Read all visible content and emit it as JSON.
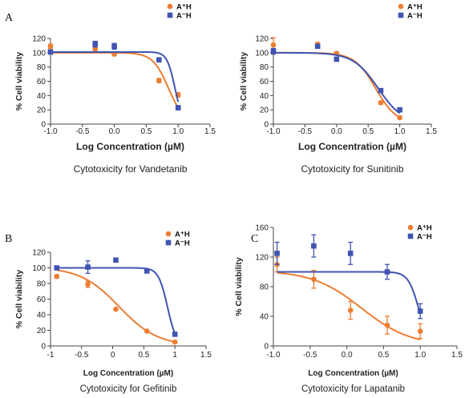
{
  "chart_data": [
    {
      "type": "scatter",
      "panel_letter": "A",
      "caption": "Cytotoxicity for Vandetanib",
      "xlabel": "Log Concentration (µM)",
      "ylabel": "% Cell viability",
      "xlim": [
        -1.0,
        1.5
      ],
      "ylim": [
        0,
        120
      ],
      "x_ticks": [
        "-1.0",
        "-0.5",
        "0.0",
        "0.5",
        "1.0",
        "1.5"
      ],
      "y_ticks": [
        "0",
        "20",
        "40",
        "60",
        "80",
        "100",
        "120"
      ],
      "legend_position": "top-right",
      "series": [
        {
          "name": "A⁺H",
          "color": "#ed7d31",
          "marker": "circle",
          "x": [
            -1.0,
            -0.3,
            0.0,
            0.7,
            1.0
          ],
          "y": [
            109,
            105,
            98,
            61,
            41
          ],
          "err": [
            3,
            2,
            2,
            3,
            3
          ],
          "curve": {
            "top": 100,
            "ic50": 0.85,
            "hill": 3.5
          }
        },
        {
          "name": "A⁻H",
          "color": "#4054b2",
          "marker": "square",
          "x": [
            -1.0,
            -0.3,
            0.0,
            0.7,
            1.0
          ],
          "y": [
            101,
            112,
            109,
            90,
            23
          ],
          "err": [
            3,
            4,
            4,
            2,
            3
          ],
          "curve": {
            "top": 101,
            "ic50": 0.95,
            "hill": 7.0
          }
        }
      ]
    },
    {
      "type": "scatter",
      "panel_letter": "",
      "caption": "Cytotoxicity for Sunitinib",
      "xlabel": "Log Concentration (µM)",
      "ylabel": "% Cell viability",
      "xlim": [
        -1.0,
        1.5
      ],
      "ylim": [
        0,
        120
      ],
      "x_ticks": [
        "-1.0",
        "-0.5",
        "0.0",
        "0.5",
        "1.0",
        "1.5"
      ],
      "y_ticks": [
        "0",
        "20",
        "40",
        "60",
        "80",
        "100",
        "120"
      ],
      "legend_position": "top-right",
      "series": [
        {
          "name": "A⁺H",
          "color": "#ed7d31",
          "marker": "circle",
          "x": [
            -1.0,
            -0.3,
            0.0,
            0.7,
            1.0
          ],
          "y": [
            111,
            112,
            99,
            30,
            9
          ],
          "err": [
            10,
            2,
            2,
            2,
            2
          ],
          "curve": {
            "top": 100,
            "ic50": 0.62,
            "hill": 2.6
          }
        },
        {
          "name": "A⁻H",
          "color": "#4054b2",
          "marker": "square",
          "x": [
            -1.0,
            -0.3,
            0.0,
            0.7,
            1.0
          ],
          "y": [
            102,
            109,
            91,
            47,
            20
          ],
          "err": [
            4,
            2,
            3,
            2,
            2
          ],
          "curve": {
            "top": 100,
            "ic50": 0.66,
            "hill": 2.2
          }
        }
      ]
    },
    {
      "type": "scatter",
      "panel_letter": "B",
      "caption": "Cytotoxicity for Gefitinib",
      "xlabel": "Log Concentration (µM)",
      "ylabel": "% Cell viability",
      "xlim": [
        -1.0,
        1.5
      ],
      "ylim": [
        0,
        120
      ],
      "x_ticks": [
        "-1",
        "-0.5",
        "0",
        "0.5",
        "1",
        "1.5"
      ],
      "y_ticks": [
        "0",
        "20",
        "40",
        "60",
        "80",
        "100",
        "120"
      ],
      "legend_position": "top-right",
      "series": [
        {
          "name": "A⁺H",
          "color": "#ed7d31",
          "marker": "circle",
          "x": [
            -0.9,
            -0.4,
            0.05,
            0.55,
            1.0
          ],
          "y": [
            89,
            79,
            47,
            19,
            5
          ],
          "err": [
            2,
            4,
            1,
            1,
            1
          ],
          "curve": {
            "top": 101,
            "ic50": 0.1,
            "hill": 1.4
          }
        },
        {
          "name": "A⁻H",
          "color": "#4054b2",
          "marker": "square",
          "x": [
            -0.9,
            -0.4,
            0.05,
            0.55,
            1.0
          ],
          "y": [
            100,
            101,
            110,
            96,
            15
          ],
          "err": [
            1,
            8,
            1,
            1,
            1
          ],
          "curve": {
            "top": 100,
            "ic50": 0.88,
            "hill": 6.0
          }
        }
      ]
    },
    {
      "type": "scatter",
      "panel_letter": "C",
      "caption": "Cytotoxicity for Lapatanib",
      "xlabel": "Log Concentration (µM)",
      "ylabel": "% Cell viability",
      "xlim": [
        -1.0,
        1.5
      ],
      "ylim": [
        0,
        160
      ],
      "x_ticks": [
        "-1.0",
        "-0.5",
        "0.0",
        "0.5",
        "1.0",
        "1.5"
      ],
      "y_ticks": [
        "0",
        "40",
        "80",
        "120",
        "160"
      ],
      "legend_position": "top-right",
      "series": [
        {
          "name": "A⁺H",
          "color": "#ed7d31",
          "marker": "circle",
          "x": [
            -0.95,
            -0.45,
            0.05,
            0.55,
            1.0
          ],
          "y": [
            110,
            90,
            48,
            28,
            20
          ],
          "err": [
            10,
            12,
            12,
            12,
            10
          ],
          "curve": {
            "top": 102,
            "ic50": 0.2,
            "hill": 1.3
          }
        },
        {
          "name": "A⁻H",
          "color": "#4054b2",
          "marker": "square",
          "x": [
            -0.95,
            -0.45,
            0.05,
            0.55,
            1.0
          ],
          "y": [
            125,
            135,
            125,
            100,
            47
          ],
          "err": [
            15,
            15,
            15,
            10,
            10
          ],
          "curve": {
            "top": 100,
            "ic50": 0.98,
            "hill": 6.0
          }
        }
      ]
    }
  ]
}
